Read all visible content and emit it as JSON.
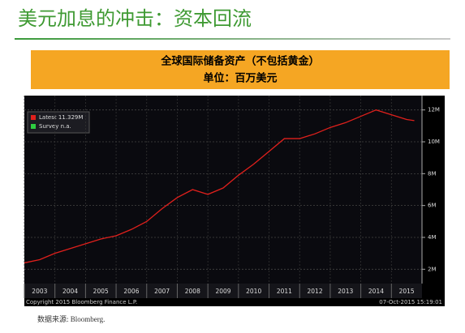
{
  "header": {
    "title": "美元加息的冲击：资本回流"
  },
  "chart_data": {
    "type": "line",
    "title": "全球国际储备资产（不包括黄金）",
    "subtitle": "单位：百万美元",
    "legend": [
      "Latest 11.329M",
      "Survey n.a."
    ],
    "copyright": "Copyright 2015 Bloomberg Finance L.P.",
    "timestamp": "07-Oct-2015 15:19:01",
    "x": [
      2003.0,
      2003.5,
      2004.0,
      2004.5,
      2005.0,
      2005.5,
      2006.0,
      2006.5,
      2007.0,
      2007.5,
      2008.0,
      2008.5,
      2009.0,
      2009.5,
      2010.0,
      2010.5,
      2011.0,
      2011.5,
      2012.0,
      2012.5,
      2013.0,
      2013.5,
      2014.0,
      2014.5,
      2015.0,
      2015.5,
      2015.75
    ],
    "series": [
      {
        "name": "Latest",
        "color": "#e0201c",
        "values": [
          2.4,
          2.6,
          3.0,
          3.3,
          3.6,
          3.9,
          4.1,
          4.5,
          5.0,
          5.8,
          6.5,
          7.0,
          6.7,
          7.1,
          7.9,
          8.6,
          9.4,
          10.2,
          10.2,
          10.5,
          10.9,
          11.2,
          11.6,
          12.0,
          11.7,
          11.4,
          11.329
        ]
      }
    ],
    "xlim": [
      2003,
      2016
    ],
    "xticks": [
      2003,
      2004,
      2005,
      2006,
      2007,
      2008,
      2009,
      2010,
      2011,
      2012,
      2013,
      2014,
      2015
    ],
    "ylim": [
      1.1,
      12.9
    ],
    "yticks": [
      {
        "value": 2,
        "label": "2M"
      },
      {
        "value": 4,
        "label": "4M"
      },
      {
        "value": 6,
        "label": "6M"
      },
      {
        "value": 8,
        "label": "8M"
      },
      {
        "value": 10,
        "label": "10M"
      },
      {
        "value": 12,
        "label": "12M"
      }
    ],
    "grid": true
  },
  "footer": {
    "source": "数据来源: Bloomberg."
  }
}
